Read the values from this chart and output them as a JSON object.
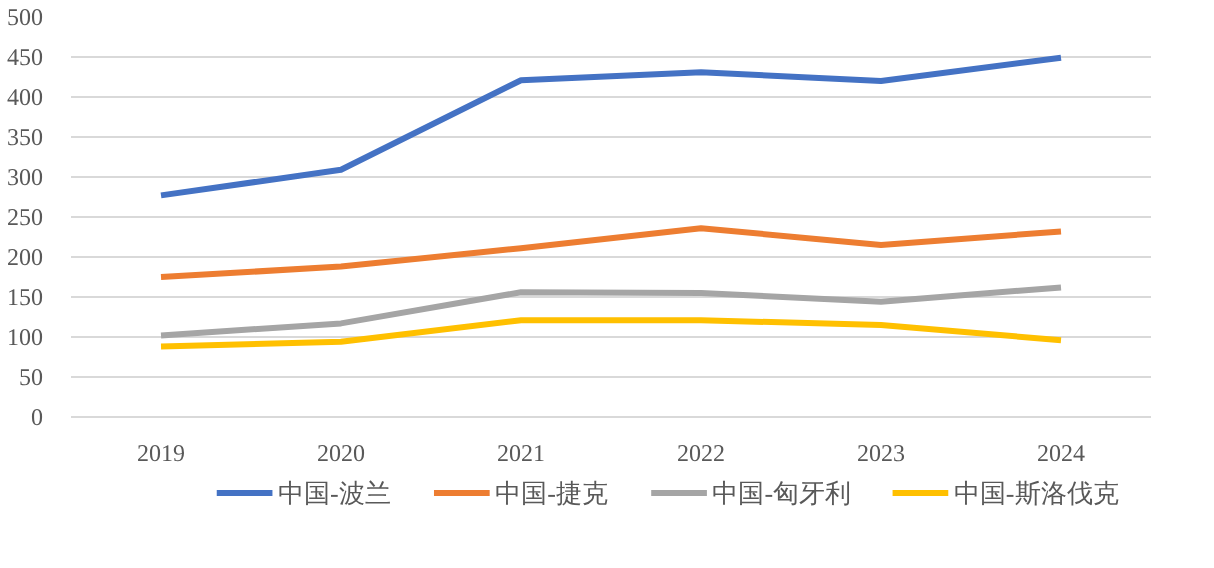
{
  "chart_data": {
    "type": "line",
    "categories": [
      "2019",
      "2020",
      "2021",
      "2022",
      "2023",
      "2024"
    ],
    "series": [
      {
        "name": "中国-波兰",
        "color": "#4472c4",
        "values": [
          277,
          309,
          421,
          431,
          420,
          449
        ]
      },
      {
        "name": "中国-捷克",
        "color": "#ed7d31",
        "values": [
          175,
          188,
          211,
          236,
          215,
          232
        ]
      },
      {
        "name": "中国-匈牙利",
        "color": "#a5a5a5",
        "values": [
          102,
          117,
          156,
          155,
          144,
          162
        ]
      },
      {
        "name": "中国-斯洛伐克",
        "color": "#ffc000",
        "values": [
          88,
          94,
          121,
          121,
          115,
          96
        ]
      }
    ],
    "ylim": [
      0,
      500
    ],
    "yticks": [
      0,
      50,
      100,
      150,
      200,
      250,
      300,
      350,
      400,
      450,
      500
    ],
    "grid": "y",
    "legend": "bottom",
    "line_style": "solid"
  }
}
